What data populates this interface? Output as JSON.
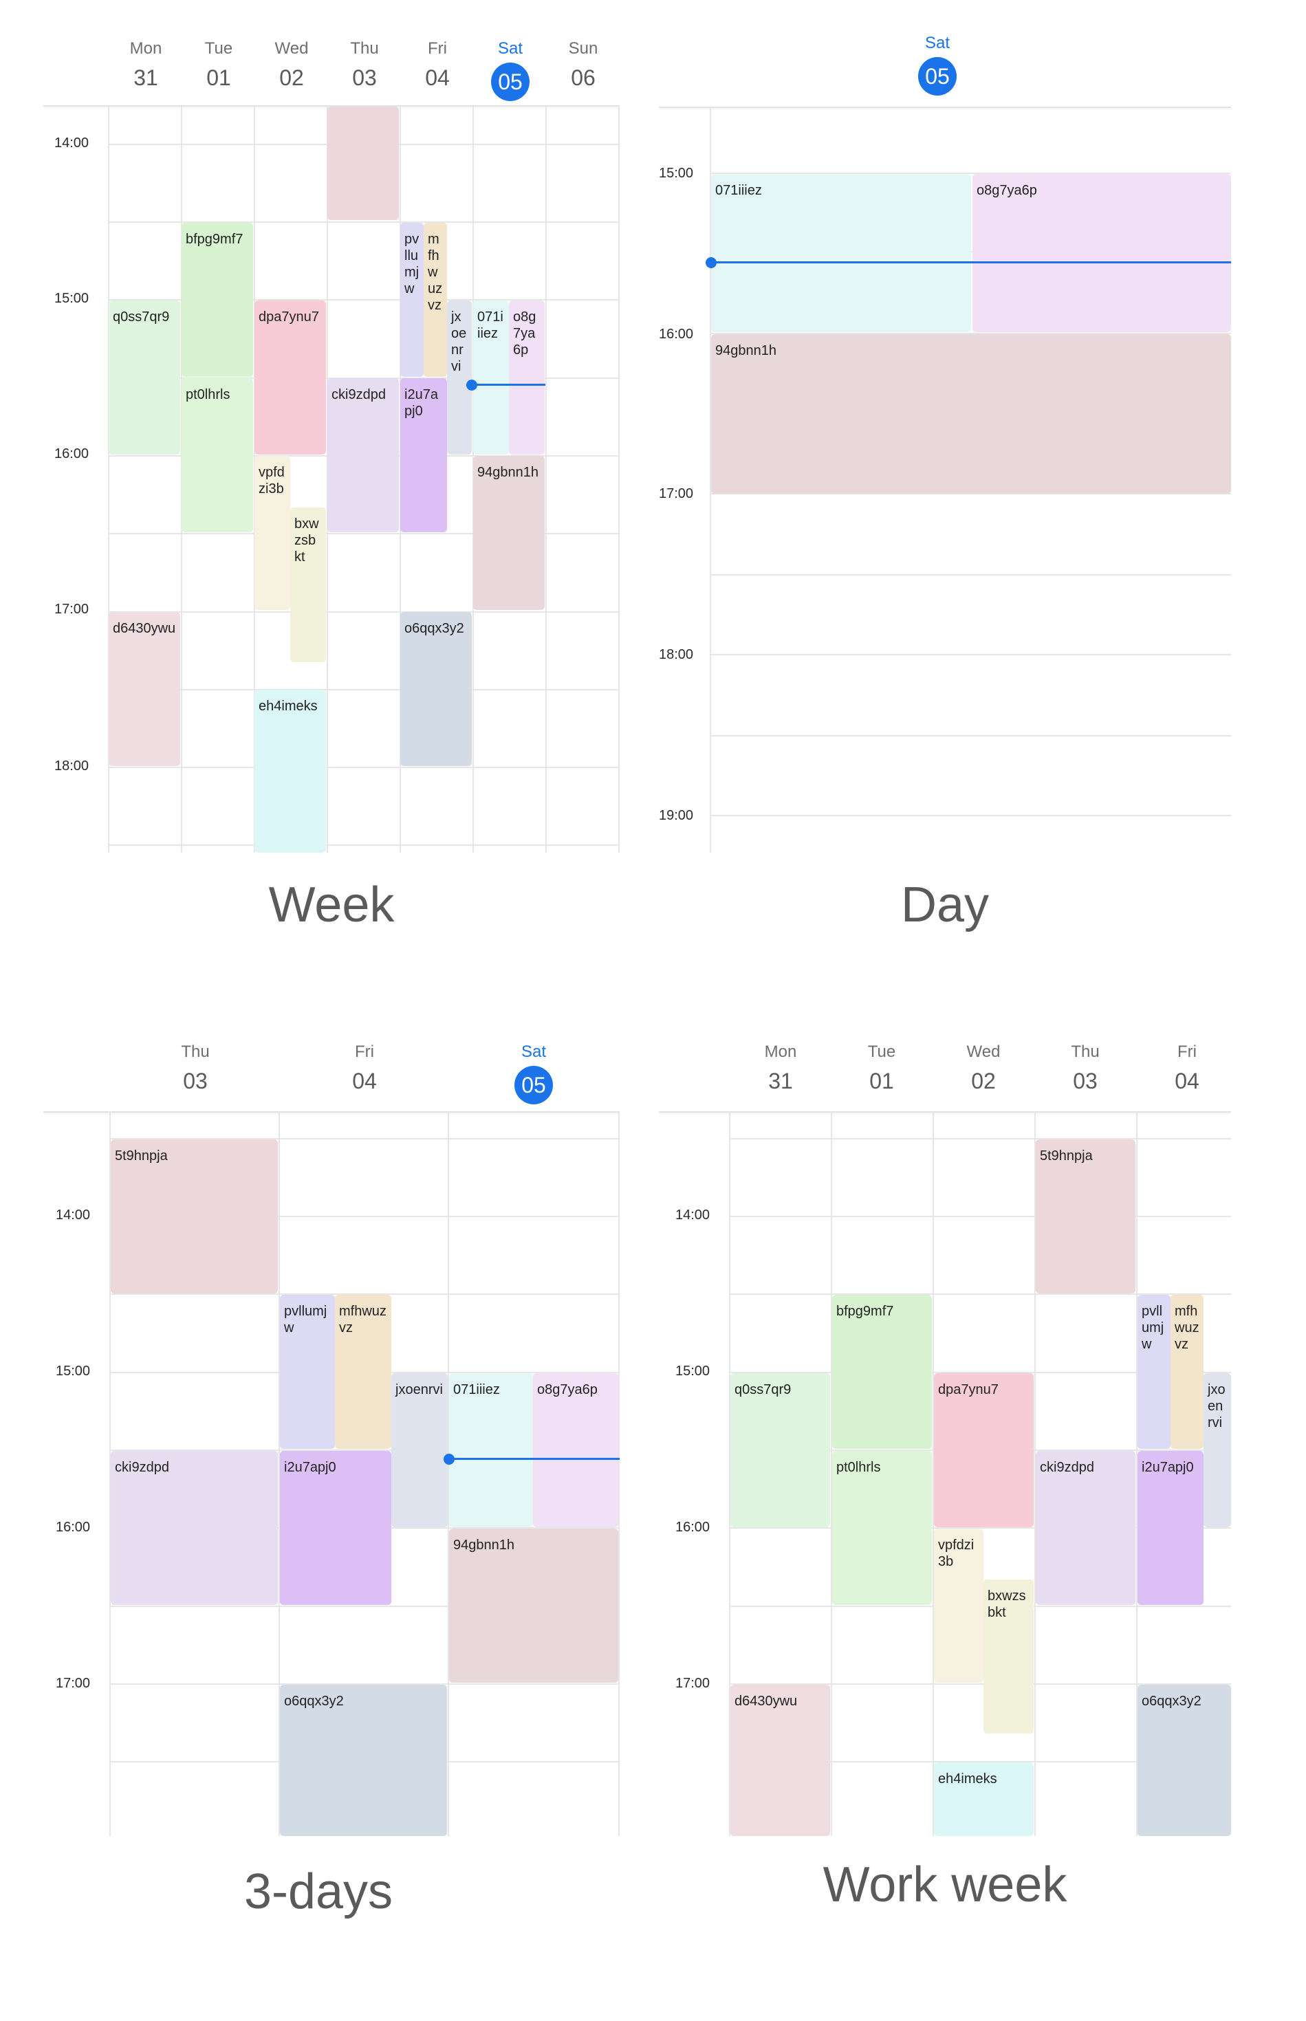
{
  "captions": {
    "week": "Week",
    "day": "Day",
    "three_days": "3-days",
    "work_week": "Work week"
  },
  "colors": {
    "accent": "#1a73e8",
    "grid": "#e6e6e6"
  },
  "week": {
    "days": [
      {
        "name": "Mon",
        "num": "31"
      },
      {
        "name": "Tue",
        "num": "01"
      },
      {
        "name": "Wed",
        "num": "02"
      },
      {
        "name": "Thu",
        "num": "03"
      },
      {
        "name": "Fri",
        "num": "04"
      },
      {
        "name": "Sat",
        "num": "05",
        "today": true
      },
      {
        "name": "Sun",
        "num": "06"
      }
    ],
    "times": [
      "14:00",
      "15:00",
      "16:00",
      "17:00",
      "18:00"
    ],
    "events": [
      {
        "label": "bfpg9mf7",
        "color": "#d8f3d0"
      },
      {
        "label": "q0ss7qr9",
        "color": "#dff5df"
      },
      {
        "label": "pt0lhrls",
        "color": "#dff5d8"
      },
      {
        "label": "dpa7ynu7",
        "color": "#f8ccd6"
      },
      {
        "label": "vpfdzi3b",
        "color": "#f7f2df"
      },
      {
        "label": "bxwzsbkt",
        "color": "#f2f2da"
      },
      {
        "label": "",
        "color": "#ecd8da"
      },
      {
        "label": "cki9zdpd",
        "color": "#e6def0"
      },
      {
        "label": "pvllumjw",
        "color": "#dcdaf5"
      },
      {
        "label": "mfhwuzvz",
        "color": "#f3e4cc"
      },
      {
        "label": "jxoenrvi",
        "color": "#dfe3ee"
      },
      {
        "label": "i2u7apj0",
        "color": "#dcc0f5"
      },
      {
        "label": "071iiiez",
        "color": "#e4f7f7"
      },
      {
        "label": "o8g7ya6p",
        "color": "#f2e0f7"
      },
      {
        "label": "94gbnn1h",
        "color": "#e8d8db"
      },
      {
        "label": "d6430ywu",
        "color": "#efdde2"
      },
      {
        "label": "eh4imeks",
        "color": "#dcf7f7"
      },
      {
        "label": "o6qqx3y2",
        "color": "#d3dce6"
      }
    ]
  },
  "day": {
    "day": {
      "name": "Sat",
      "num": "05"
    },
    "times": [
      "15:00",
      "16:00",
      "17:00",
      "18:00",
      "19:00"
    ],
    "events": [
      {
        "label": "071iiiez",
        "color": "#e4f7f7"
      },
      {
        "label": "o8g7ya6p",
        "color": "#f2e0f7"
      },
      {
        "label": "94gbnn1h",
        "color": "#e8d8db"
      }
    ]
  },
  "three_days": {
    "days": [
      {
        "name": "Thu",
        "num": "03"
      },
      {
        "name": "Fri",
        "num": "04"
      },
      {
        "name": "Sat",
        "num": "05",
        "today": true
      }
    ],
    "times": [
      "14:00",
      "15:00",
      "16:00",
      "17:00"
    ],
    "events": [
      {
        "label": "5t9hnpja",
        "color": "#ecd8da"
      },
      {
        "label": "cki9zdpd",
        "color": "#e6def0"
      },
      {
        "label": "pvllumjw",
        "color": "#dcdaf5"
      },
      {
        "label": "mfhwuzvz",
        "color": "#f3e4cc"
      },
      {
        "label": "jxoenrvi",
        "color": "#dfe3ee"
      },
      {
        "label": "i2u7apj0",
        "color": "#dcc0f5"
      },
      {
        "label": "o6qqx3y2",
        "color": "#d3dce6"
      },
      {
        "label": "071iiiez",
        "color": "#e4f7f7"
      },
      {
        "label": "o8g7ya6p",
        "color": "#f2e0f7"
      },
      {
        "label": "94gbnn1h",
        "color": "#e8d8db"
      }
    ]
  },
  "work_week": {
    "days": [
      {
        "name": "Mon",
        "num": "31"
      },
      {
        "name": "Tue",
        "num": "01"
      },
      {
        "name": "Wed",
        "num": "02"
      },
      {
        "name": "Thu",
        "num": "03"
      },
      {
        "name": "Fri",
        "num": "04"
      }
    ],
    "times": [
      "14:00",
      "15:00",
      "16:00",
      "17:00"
    ],
    "events": [
      {
        "label": "5t9hnpja",
        "color": "#ecd8da"
      },
      {
        "label": "bfpg9mf7",
        "color": "#d8f3d0"
      },
      {
        "label": "q0ss7qr9",
        "color": "#dff5df"
      },
      {
        "label": "pt0lhrls",
        "color": "#dff5d8"
      },
      {
        "label": "dpa7ynu7",
        "color": "#f8ccd6"
      },
      {
        "label": "vpfdzi3b",
        "color": "#f7f2df"
      },
      {
        "label": "bxwzsbkt",
        "color": "#f2f2da"
      },
      {
        "label": "cki9zdpd",
        "color": "#e6def0"
      },
      {
        "label": "pvllumjw",
        "color": "#dcdaf5"
      },
      {
        "label": "mfhwuzvz",
        "color": "#f3e4cc"
      },
      {
        "label": "jxoenrvi",
        "color": "#dfe3ee"
      },
      {
        "label": "i2u7apj0",
        "color": "#dcc0f5"
      },
      {
        "label": "d6430ywu",
        "color": "#efdde2"
      },
      {
        "label": "eh4imeks",
        "color": "#dcf7f7"
      },
      {
        "label": "o6qqx3y2",
        "color": "#d3dce6"
      }
    ]
  }
}
